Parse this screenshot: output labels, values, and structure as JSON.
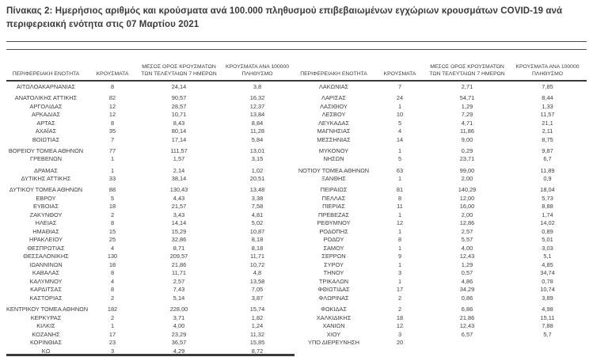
{
  "title": "Πίνακας 2:  Ημερήσιος αριθμός και κρούσματα ανά 100.000 πληθυσμού επιβεβαιωμένων εγχώριων κρουσμάτων COVID-19 ανά περιφερειακή ενότητα στις 07 Μαρτίου 2021",
  "headers": {
    "region": "ΠΕΡΙΦΕΡΕΙΑΚΗ ΕΝΟΤΗΤΑ",
    "cases": "ΚΡΟΥΣΜΑΤΑ",
    "avg7": "ΜΕΣΟΣ ΟΡΟΣ ΚΡΟΥΣΜΑΤΩΝ ΤΩΝ ΤΕΛΕΥΤΑΙΩΝ 7 ΗΜΕΡΩΝ",
    "per100k": "ΚΡΟΥΣΜΑΤΑ ΑΝΑ 100000 ΠΛΗΘΥΣΜΟ"
  },
  "left_rows": [
    {
      "name": "ΑΙΤΩΛΟΑΚΑΡΝΑΝΙΑΣ",
      "cases": "8",
      "avg7": "24,14",
      "per100k": "3,8"
    },
    {
      "type": "gap"
    },
    {
      "name": "ΑΝΑΤΟΛΙΚΗΣ ΑΤΤΙΚΗΣ",
      "cases": "82",
      "avg7": "90,57",
      "per100k": "16,32"
    },
    {
      "name": "ΑΡΓΟΛΙΔΑΣ",
      "cases": "12",
      "avg7": "28,57",
      "per100k": "12,37"
    },
    {
      "name": "ΑΡΚΑΔΙΑΣ",
      "cases": "12",
      "avg7": "10,71",
      "per100k": "13,84"
    },
    {
      "name": "ΑΡΤΑΣ",
      "cases": "8",
      "avg7": "8,43",
      "per100k": "8,84"
    },
    {
      "name": "ΑΧΑΪΑΣ",
      "cases": "35",
      "avg7": "80,14",
      "per100k": "11,28"
    },
    {
      "name": "ΒΟΙΩΤΙΑΣ",
      "cases": "7",
      "avg7": "17,14",
      "per100k": "5,84"
    },
    {
      "type": "gap"
    },
    {
      "name": "ΒΟΡΕΙΟΥ ΤΟΜΕΑ ΑΘΗΝΩΝ",
      "cases": "77",
      "avg7": "111,57",
      "per100k": "13,01"
    },
    {
      "name": "ΓΡΕΒΕΝΩΝ",
      "cases": "1",
      "avg7": "1,57",
      "per100k": "3,15"
    },
    {
      "type": "gap"
    },
    {
      "name": "ΔΡΑΜΑΣ",
      "cases": "1",
      "avg7": "2,14",
      "per100k": "1,02"
    },
    {
      "name": "ΔΥΤΙΚΗΣ ΑΤΤΙΚΗΣ",
      "cases": "33",
      "avg7": "38,14",
      "per100k": "20,51"
    },
    {
      "type": "gap"
    },
    {
      "name": "ΔΥΤΙΚΟΥ ΤΟΜΕΑ ΑΘΗΝΩΝ",
      "cases": "88",
      "avg7": "130,43",
      "per100k": "13,48"
    },
    {
      "name": "ΕΒΡΟΥ",
      "cases": "5",
      "avg7": "4,43",
      "per100k": "3,38"
    },
    {
      "name": "ΕΥΒΟΙΑΣ",
      "cases": "18",
      "avg7": "21,57",
      "per100k": "7,58"
    },
    {
      "name": "ΖΑΚΥΝΘΟΥ",
      "cases": "2",
      "avg7": "3,43",
      "per100k": "4,81"
    },
    {
      "name": "ΗΛΕΙΑΣ",
      "cases": "8",
      "avg7": "14,14",
      "per100k": "5,02"
    },
    {
      "name": "ΗΜΑΘΙΑΣ",
      "cases": "15",
      "avg7": "15,29",
      "per100k": "10,87"
    },
    {
      "name": "ΗΡΑΚΛΕΙΟΥ",
      "cases": "25",
      "avg7": "32,86",
      "per100k": "8,18"
    },
    {
      "name": "ΘΕΣΠΡΩΤΙΑΣ",
      "cases": "4",
      "avg7": "8,71",
      "per100k": "8,18"
    },
    {
      "name": "ΘΕΣΣΑΛΟΝΙΚΗΣ",
      "cases": "130",
      "avg7": "209,57",
      "per100k": "11,71"
    },
    {
      "name": "ΙΩΑΝΝΙΝΩΝ",
      "cases": "18",
      "avg7": "21,86",
      "per100k": "10,72"
    },
    {
      "name": "ΚΑΒΑΛΑΣ",
      "cases": "8",
      "avg7": "11,71",
      "per100k": "4,8"
    },
    {
      "name": "ΚΑΛΥΜΝΟΥ",
      "cases": "4",
      "avg7": "2,57",
      "per100k": "13,58"
    },
    {
      "name": "ΚΑΡΔΙΤΣΑΣ",
      "cases": "8",
      "avg7": "7,43",
      "per100k": "7,05"
    },
    {
      "name": "ΚΑΣΤΟΡΙΑΣ",
      "cases": "2",
      "avg7": "5,14",
      "per100k": "3,87"
    },
    {
      "type": "gap"
    },
    {
      "name": "ΚΕΝΤΡΙΚΟΥ ΤΟΜΕΑ ΑΘΗΝΩΝ",
      "cases": "182",
      "avg7": "228,00",
      "per100k": "15,74"
    },
    {
      "name": "ΚΕΡΚΥΡΑΣ",
      "cases": "2",
      "avg7": "3,71",
      "per100k": "1,82"
    },
    {
      "name": "ΚΙΛΚΙΣ",
      "cases": "1",
      "avg7": "4,00",
      "per100k": "1,24"
    },
    {
      "name": "ΚΟΖΑΝΗΣ",
      "cases": "17",
      "avg7": "23,29",
      "per100k": "11,32"
    },
    {
      "name": "ΚΟΡΙΝΘΙΑΣ",
      "cases": "23",
      "avg7": "36,57",
      "per100k": "15,85"
    },
    {
      "name": "ΚΩ",
      "cases": "3",
      "avg7": "4,29",
      "per100k": "8,72"
    }
  ],
  "right_rows": [
    {
      "name": "ΛΑΚΩΝΙΑΣ",
      "cases": "7",
      "avg7": "2,71",
      "per100k": "7,85"
    },
    {
      "type": "gap"
    },
    {
      "name": "ΛΑΡΙΣΑΣ",
      "cases": "24",
      "avg7": "54,71",
      "per100k": "8,44"
    },
    {
      "name": "ΛΑΣΙΘΙΟΥ",
      "cases": "1",
      "avg7": "1,29",
      "per100k": "1,33"
    },
    {
      "name": "ΛΕΣΒΟΥ",
      "cases": "10",
      "avg7": "7,29",
      "per100k": "11,57"
    },
    {
      "name": "ΛΕΥΚΑΔΑΣ",
      "cases": "5",
      "avg7": "4,71",
      "per100k": "21,1"
    },
    {
      "name": "ΜΑΓΝΗΣΙΑΣ",
      "cases": "4",
      "avg7": "11,86",
      "per100k": "2,11"
    },
    {
      "name": "ΜΕΣΣΗΝΙΑΣ",
      "cases": "14",
      "avg7": "9,00",
      "per100k": "8,75"
    },
    {
      "type": "gap"
    },
    {
      "name": "ΜΥΚΟΝΟΥ",
      "cases": "1",
      "avg7": "0,29",
      "per100k": "9,87"
    },
    {
      "name": "ΝΗΣΩΝ",
      "cases": "5",
      "avg7": "23,71",
      "per100k": "6,7"
    },
    {
      "type": "gap"
    },
    {
      "name": "ΝΟΤΙΟΥ ΤΟΜΕΑ ΑΘΗΝΩΝ",
      "cases": "63",
      "avg7": "99,00",
      "per100k": "11,89"
    },
    {
      "name": "ΞΑΝΘΗΣ",
      "cases": "1",
      "avg7": "2,00",
      "per100k": "0,9"
    },
    {
      "type": "gap"
    },
    {
      "name": "ΠΕΙΡΑΙΩΣ",
      "cases": "81",
      "avg7": "140,29",
      "per100k": "18,04"
    },
    {
      "name": "ΠΕΛΛΑΣ",
      "cases": "8",
      "avg7": "12,00",
      "per100k": "5,73"
    },
    {
      "name": "ΠΙΕΡΙΑΣ",
      "cases": "11",
      "avg7": "16,00",
      "per100k": "8,88"
    },
    {
      "name": "ΠΡΕΒΕΖΑΣ",
      "cases": "1",
      "avg7": "2,00",
      "per100k": "1,74"
    },
    {
      "name": "ΡΕΘΥΜΝΟΥ",
      "cases": "12",
      "avg7": "12,86",
      "per100k": "14,02"
    },
    {
      "name": "ΡΟΔΟΠΗΣ",
      "cases": "1",
      "avg7": "2,57",
      "per100k": "0,89"
    },
    {
      "name": "ΡΟΔΟΥ",
      "cases": "8",
      "avg7": "5,57",
      "per100k": "5,01"
    },
    {
      "name": "ΣΑΜΟΥ",
      "cases": "1",
      "avg7": "4,00",
      "per100k": "3,03"
    },
    {
      "name": "ΣΕΡΡΩΝ",
      "cases": "9",
      "avg7": "12,43",
      "per100k": "5,1"
    },
    {
      "name": "ΣΥΡΟΥ",
      "cases": "1",
      "avg7": "1,29",
      "per100k": "4,85"
    },
    {
      "name": "ΤΗΝΟΥ",
      "cases": "3",
      "avg7": "0,57",
      "per100k": "34,74"
    },
    {
      "name": "ΤΡΙΚΑΛΩΝ",
      "cases": "1",
      "avg7": "4,86",
      "per100k": "0,78"
    },
    {
      "name": "ΦΘΙΩΤΙΔΑΣ",
      "cases": "17",
      "avg7": "34,29",
      "per100k": "10,74"
    },
    {
      "name": "ΦΛΩΡΙΝΑΣ",
      "cases": "2",
      "avg7": "0,86",
      "per100k": "3,89"
    },
    {
      "type": "gap"
    },
    {
      "name": "ΦΩΚΙΔΑΣ",
      "cases": "2",
      "avg7": "6,86",
      "per100k": "4,98"
    },
    {
      "name": "ΧΑΛΚΙΔΙΚΗΣ",
      "cases": "18",
      "avg7": "21,86",
      "per100k": "15,11"
    },
    {
      "name": "ΧΑΝΙΩΝ",
      "cases": "12",
      "avg7": "12,43",
      "per100k": "7,88"
    },
    {
      "name": "ΧΙΟΥ",
      "cases": "3",
      "avg7": "6,57",
      "per100k": "5,7"
    },
    {
      "name": "ΥΠΟ ΔΙΕΡΕΥΝΗΣΗ",
      "cases": "20",
      "avg7": "",
      "per100k": ""
    }
  ],
  "colors": {
    "text": "#3d3d3d",
    "rule": "#3a3a3a",
    "background": "#ffffff"
  }
}
